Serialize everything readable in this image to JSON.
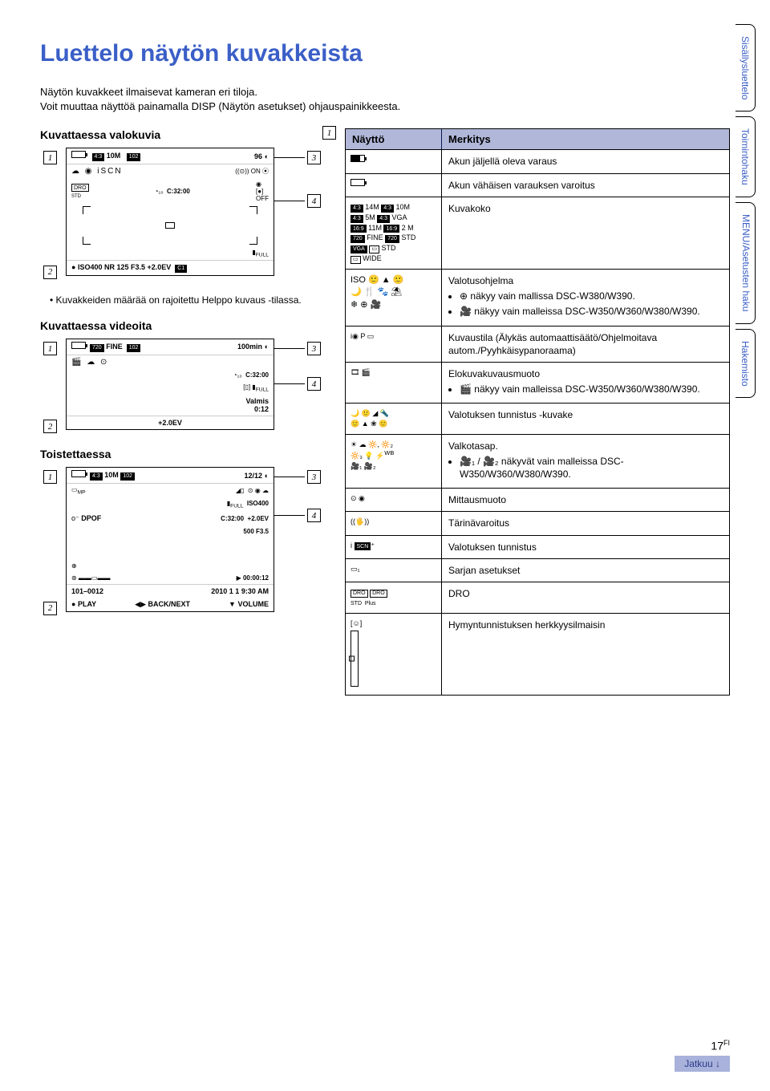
{
  "title": "Luettelo näytön kuvakkeista",
  "intro1": "Näytön kuvakkeet ilmaisevat kameran eri tiloja.",
  "intro2": "Voit muuttaa näyttöä painamalla DISP (Näytön asetukset) ohjauspainikkeesta.",
  "sec_photo": "Kuvattaessa valokuvia",
  "sec_video": "Kuvattaessa videoita",
  "sec_play": "Toistettaessa",
  "note_photo": "• Kuvakkeiden määrää on rajoitettu Helppo kuvaus -tilassa.",
  "photo": {
    "top_left_ratio": "4:3",
    "top_left_size": "10M",
    "top_count": "96",
    "timer": "C:32:00",
    "full": "FULL",
    "bottom": "ISO400    NR   125   F3.5  +2.0EV"
  },
  "video": {
    "fine_tag": "FINE",
    "remain": "100min",
    "timer": "C:32:00",
    "full": "FULL",
    "valmis": "Valmis",
    "elapsed": "0:12",
    "ev": "+2.0EV"
  },
  "play": {
    "ratio": "4:3",
    "size": "10M",
    "counter": "12/12",
    "iso": "ISO400",
    "dpof": "DPOF",
    "timer": "C:32:00",
    "ev": "+2.0EV",
    "exp": "500  F3.5",
    "time_play": "00:00:12",
    "folder": "101–0012",
    "date": "2010  1  1    9:30 AM",
    "play_label": "PLAY",
    "backnext": "BACK/NEXT",
    "volume": "VOLUME"
  },
  "table": {
    "h1": "Näyttö",
    "h2": "Merkitys",
    "rows": [
      {
        "icon": "batt",
        "text": "Akun jäljellä oleva varaus"
      },
      {
        "icon": "batt-warn",
        "text": "Akun vähäisen varauksen varoitus"
      },
      {
        "icon": "sizes",
        "text": "Kuvakoko"
      },
      {
        "icon": "scene",
        "text": "Valotusohjelma",
        "bullets": [
          "⊕ näkyy vain mallissa DSC-W380/W390.",
          "🎥 näkyy vain malleissa DSC-W350/W360/W380/W390."
        ]
      },
      {
        "icon": "modes",
        "text": "Kuvaustila (Älykäs automaattisäätö/Ohjelmoitava autom./Pyyhkäisypanoraama)"
      },
      {
        "icon": "movie",
        "text": "Elokuvakuvausmuoto",
        "bullets": [
          "🎬 näkyy vain malleissa DSC-W350/W360/W380/W390."
        ]
      },
      {
        "icon": "scene-rec",
        "text": "Valotuksen tunnistus -kuvake"
      },
      {
        "icon": "wb",
        "text": "Valkotasap.",
        "bullets": [
          "🎥₁ / 🎥₂ näkyvät vain malleissa DSC-W350/W360/W380/W390."
        ]
      },
      {
        "icon": "meter",
        "text": "Mittausmuoto"
      },
      {
        "icon": "shake",
        "text": "Tärinävaroitus"
      },
      {
        "icon": "scn",
        "text": "Valotuksen tunnistus"
      },
      {
        "icon": "burst",
        "text": "Sarjan asetukset"
      },
      {
        "icon": "dro",
        "text": "DRO"
      },
      {
        "icon": "smile",
        "text": "Hymyntunnistuksen herkkyysilmaisin"
      }
    ]
  },
  "tabs": {
    "t1": "Sisällysluettelo",
    "t2": "Toimintohaku",
    "t3a": "MENU/",
    "t3b": "Asetusten haku",
    "t4": "Hakemisto"
  },
  "footer": {
    "continue": "Jatkuu ↓",
    "page": "17",
    "suffix": "FI"
  }
}
